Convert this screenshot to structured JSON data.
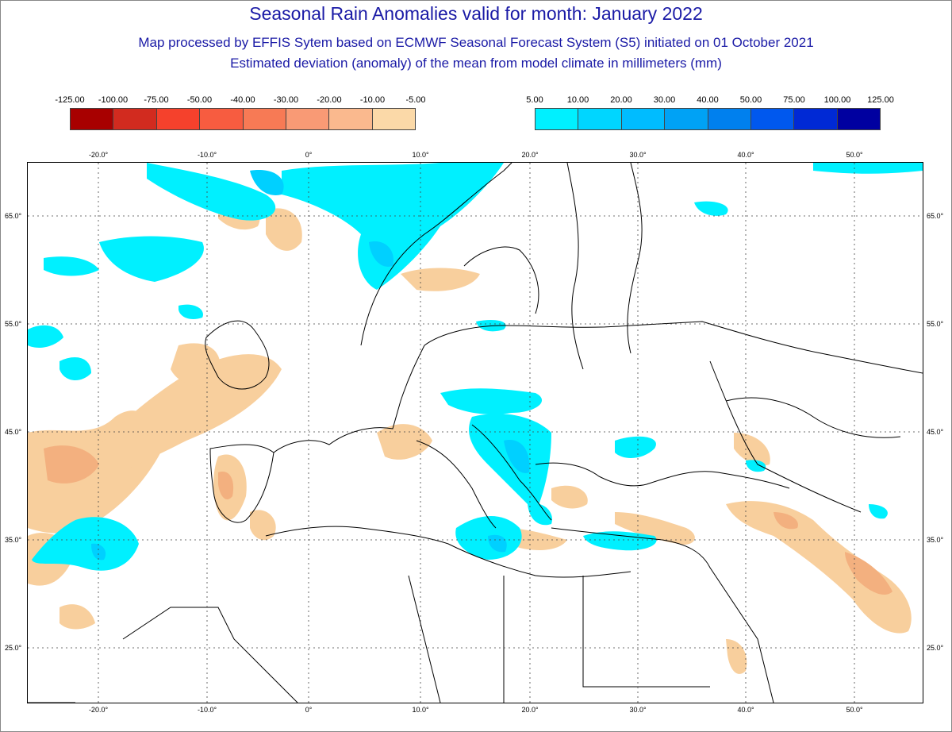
{
  "header": {
    "title": "Seasonal Rain Anomalies valid for month: January 2022",
    "subtitle1": "Map processed by EFFIS Sytem based on ECMWF Seasonal Forecast System (S5) initiated on 01 October 2021",
    "subtitle2": "Estimated deviation (anomaly) of the mean from model climate in millimeters (mm)"
  },
  "legend_negative": {
    "ticks": [
      "-125.00",
      "-100.00",
      "-75.00",
      "-50.00",
      "-40.00",
      "-30.00",
      "-20.00",
      "-10.00",
      "-5.00"
    ],
    "colors": [
      "#a80000",
      "#d22b1f",
      "#f5412c",
      "#f75c40",
      "#f77a55",
      "#f99a75",
      "#fab98e",
      "#fbd9a8"
    ]
  },
  "legend_positive": {
    "ticks": [
      "5.00",
      "10.00",
      "20.00",
      "30.00",
      "40.00",
      "50.00",
      "75.00",
      "100.00",
      "125.00"
    ],
    "colors": [
      "#00f0ff",
      "#00d6ff",
      "#00bcff",
      "#00a2f5",
      "#0080ee",
      "#0058ee",
      "#0029d5",
      "#0000a0"
    ]
  },
  "map": {
    "lon_labels": [
      "-20.0°",
      "-10.0°",
      "0°",
      "10.0°",
      "20.0°",
      "30.0°",
      "40.0°",
      "50.0°"
    ],
    "lat_labels": [
      "65.0°",
      "55.0°",
      "45.0°",
      "35.0°",
      "25.0°"
    ],
    "colors": {
      "land_border": "#000000",
      "grid": "#444444",
      "dry_light": "#f8cf9d",
      "dry_medium": "#f3b07f",
      "wet_light": "#00f0ff",
      "wet_medium": "#00d0ff"
    }
  }
}
